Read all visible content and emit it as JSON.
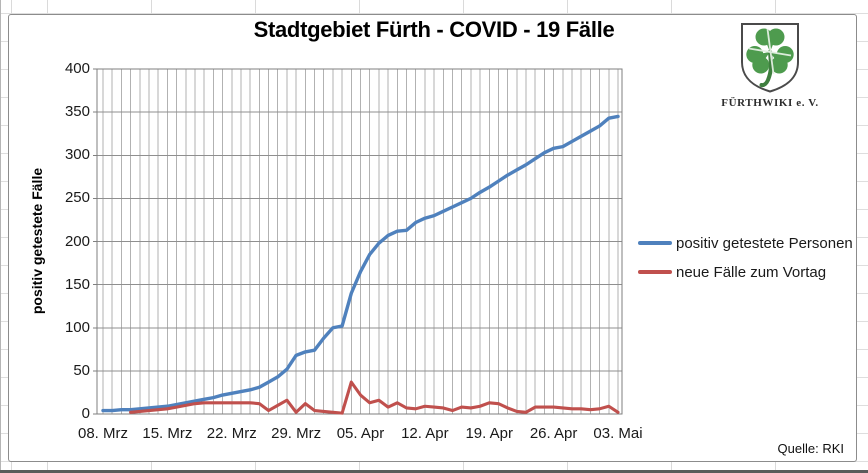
{
  "logo": {
    "caption": "FÜRTHWIKI e. V."
  },
  "chart_data": {
    "type": "line",
    "title": "Stadtgebiet Fürth - COVID - 19 Fälle",
    "xlabel": "",
    "ylabel": "positiv getestete Fälle",
    "source": "Quelle: RKI",
    "ylim": [
      0,
      400
    ],
    "y_ticks": [
      0,
      50,
      100,
      150,
      200,
      250,
      300,
      350,
      400
    ],
    "x_unit": "day",
    "x_range": [
      "08. Mrz",
      "03. Mai"
    ],
    "n_points": 57,
    "x_tick_positions": [
      0,
      7,
      14,
      21,
      28,
      35,
      42,
      49,
      56
    ],
    "x_tick_labels": [
      "08. Mrz",
      "15. Mrz",
      "22. Mrz",
      "29. Mrz",
      "05. Apr",
      "12. Apr",
      "19. Apr",
      "26. Apr",
      "03. Mai"
    ],
    "grid": true,
    "legend_position": "right",
    "series": [
      {
        "name": "positiv getestete Personen",
        "color": "#4F81BD",
        "values": [
          4,
          4,
          5,
          5,
          6,
          7,
          8,
          9,
          11,
          13,
          15,
          17,
          19,
          22,
          24,
          26,
          28,
          31,
          37,
          43,
          52,
          68,
          72,
          74,
          88,
          100,
          102,
          140,
          165,
          185,
          198,
          207,
          212,
          213,
          222,
          227,
          230,
          235,
          240,
          245,
          250,
          257,
          263,
          270,
          277,
          283,
          289,
          296,
          303,
          308,
          310,
          316,
          322,
          328,
          334,
          343,
          345
        ]
      },
      {
        "name": "neue Fälle zum Vortag",
        "color": "#C0504D",
        "values": [
          null,
          null,
          null,
          2,
          3,
          4,
          5,
          6,
          8,
          10,
          12,
          13,
          13,
          13,
          13,
          13,
          13,
          12,
          4,
          10,
          16,
          2,
          12,
          4,
          3,
          2,
          1,
          37,
          22,
          13,
          16,
          8,
          13,
          7,
          6,
          9,
          8,
          7,
          4,
          8,
          7,
          9,
          13,
          12,
          7,
          3,
          2,
          8,
          8,
          8,
          7,
          6,
          6,
          5,
          6,
          9,
          2
        ]
      }
    ]
  }
}
